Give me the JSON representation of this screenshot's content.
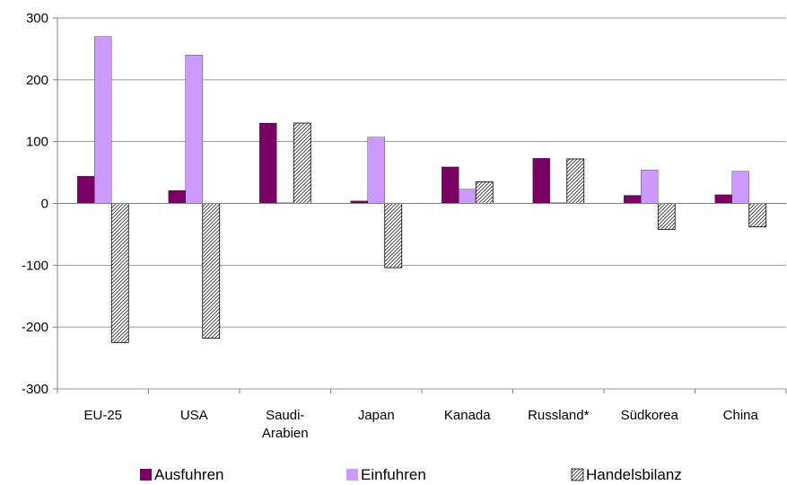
{
  "chart_data": {
    "type": "bar",
    "categories": [
      "EU-25",
      "USA",
      "Saudi-Arabien",
      "Japan",
      "Kanada",
      "Russland*",
      "Südkorea",
      "China"
    ],
    "category_lines": [
      [
        "EU-25"
      ],
      [
        "USA"
      ],
      [
        "Saudi-",
        "Arabien"
      ],
      [
        "Japan"
      ],
      [
        "Kanada"
      ],
      [
        "Russland*"
      ],
      [
        "Südkorea"
      ],
      [
        "China"
      ]
    ],
    "series": [
      {
        "name": "Ausfuhren",
        "values": [
          44,
          21,
          130,
          4,
          59,
          73,
          13,
          14
        ],
        "color": "#7b0063",
        "pattern": "solid"
      },
      {
        "name": "Einfuhren",
        "values": [
          270,
          240,
          1,
          107,
          23,
          1,
          54,
          52
        ],
        "color": "#cc99ff",
        "pattern": "solid"
      },
      {
        "name": "Handelsbilanz",
        "values": [
          -225,
          -218,
          130,
          -104,
          35,
          72,
          -42,
          -38
        ],
        "color": "#ffffff",
        "pattern": "hatched"
      }
    ],
    "yticks": [
      "300",
      "200",
      "100",
      "0",
      "-100",
      "-200",
      "-300"
    ],
    "ylim": [
      -300,
      300
    ],
    "grid": true,
    "legend_position": "bottom",
    "title": "",
    "xlabel": "",
    "ylabel": ""
  }
}
